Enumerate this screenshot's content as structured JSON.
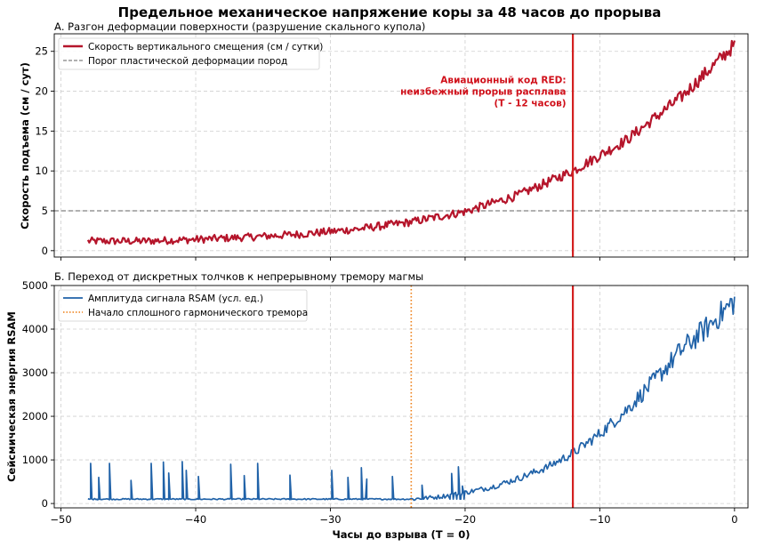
{
  "title": "Предельное механическое напряжение коры за 48 часов до прорыва",
  "colors": {
    "deformation": "#b5152b",
    "rsam": "#2062a8",
    "threshold": "#808080",
    "tremor_line": "#ee7d12",
    "alert_line": "#d42020"
  },
  "chart_data": [
    {
      "type": "line",
      "title": "А. Разгон деформации поверхности (разрушение скального купола)",
      "xlabel": "",
      "ylabel": "Скорость подъема (см / сут)",
      "xlim": [
        -50.5,
        1
      ],
      "ylim": [
        -0.8,
        27.2
      ],
      "yticks": [
        0,
        5,
        10,
        15,
        20,
        25
      ],
      "xticks": [
        -50,
        -40,
        -30,
        -20,
        -10,
        0
      ],
      "grid": true,
      "legend_position": "upper-left",
      "series": [
        {
          "name": "Скорость вертикального смещения (см / сутки)",
          "noisy": true,
          "x": [
            -48,
            -44,
            -40,
            -36,
            -32,
            -28,
            -24,
            -20,
            -16,
            -12,
            -8,
            -4,
            0
          ],
          "y": [
            1.2,
            1.2,
            1.4,
            1.7,
            2.1,
            2.7,
            3.6,
            4.9,
            7.0,
            10.0,
            13.9,
            19.2,
            25.8
          ]
        },
        {
          "name": "Порог пластической деформации пород",
          "kind": "hline",
          "y": 5
        }
      ],
      "vlines": [
        {
          "x": -12,
          "kind": "alert"
        }
      ],
      "annotations": [
        {
          "lines": [
            "Авиационный код RED:",
            "неизбежный прорыв расплава",
            "(T - 12 часов)"
          ],
          "x": -12.5,
          "y": 21
        }
      ]
    },
    {
      "type": "line",
      "title": "Б. Переход от дискретных толчков к непрерывному тремору магмы",
      "xlabel": "Часы до взрыва (T = 0)",
      "ylabel": "Сейсмическая энергия RSAM",
      "xlim": [
        -50.5,
        1
      ],
      "ylim": [
        -100,
        5000
      ],
      "yticks": [
        0,
        1000,
        2000,
        3000,
        4000,
        5000
      ],
      "xticks": [
        -50,
        -40,
        -30,
        -20,
        -10,
        0
      ],
      "grid": true,
      "legend_position": "upper-left",
      "series": [
        {
          "name": "Амплитуда сигнала RSAM (усл. ед.)",
          "noisy": true,
          "baseline": 100,
          "spikes": [
            {
              "x": -47.8,
              "y": 920
            },
            {
              "x": -47.2,
              "y": 600
            },
            {
              "x": -46.4,
              "y": 920
            },
            {
              "x": -44.8,
              "y": 530
            },
            {
              "x": -43.3,
              "y": 920
            },
            {
              "x": -42.4,
              "y": 950
            },
            {
              "x": -42.0,
              "y": 700
            },
            {
              "x": -41.0,
              "y": 960
            },
            {
              "x": -40.7,
              "y": 760
            },
            {
              "x": -39.8,
              "y": 620
            },
            {
              "x": -37.4,
              "y": 900
            },
            {
              "x": -36.4,
              "y": 640
            },
            {
              "x": -35.4,
              "y": 920
            },
            {
              "x": -33.0,
              "y": 650
            },
            {
              "x": -29.9,
              "y": 760
            },
            {
              "x": -28.7,
              "y": 600
            },
            {
              "x": -27.7,
              "y": 820
            },
            {
              "x": -27.3,
              "y": 560
            },
            {
              "x": -25.4,
              "y": 620
            },
            {
              "x": -23.2,
              "y": 420
            },
            {
              "x": -21.0,
              "y": 690
            },
            {
              "x": -20.5,
              "y": 840
            },
            {
              "x": -20.2,
              "y": 400
            }
          ],
          "x": [
            -24,
            -22,
            -20,
            -18,
            -16,
            -14,
            -12,
            -10,
            -8,
            -6,
            -4,
            -2,
            0
          ],
          "y": [
            100,
            150,
            250,
            380,
            580,
            820,
            1150,
            1600,
            2150,
            2800,
            3500,
            4050,
            4650
          ]
        }
      ],
      "vlines": [
        {
          "x": -24,
          "name": "Начало сплошного гармонического тремора",
          "kind": "tremor"
        },
        {
          "x": -12,
          "kind": "alert"
        }
      ]
    }
  ]
}
